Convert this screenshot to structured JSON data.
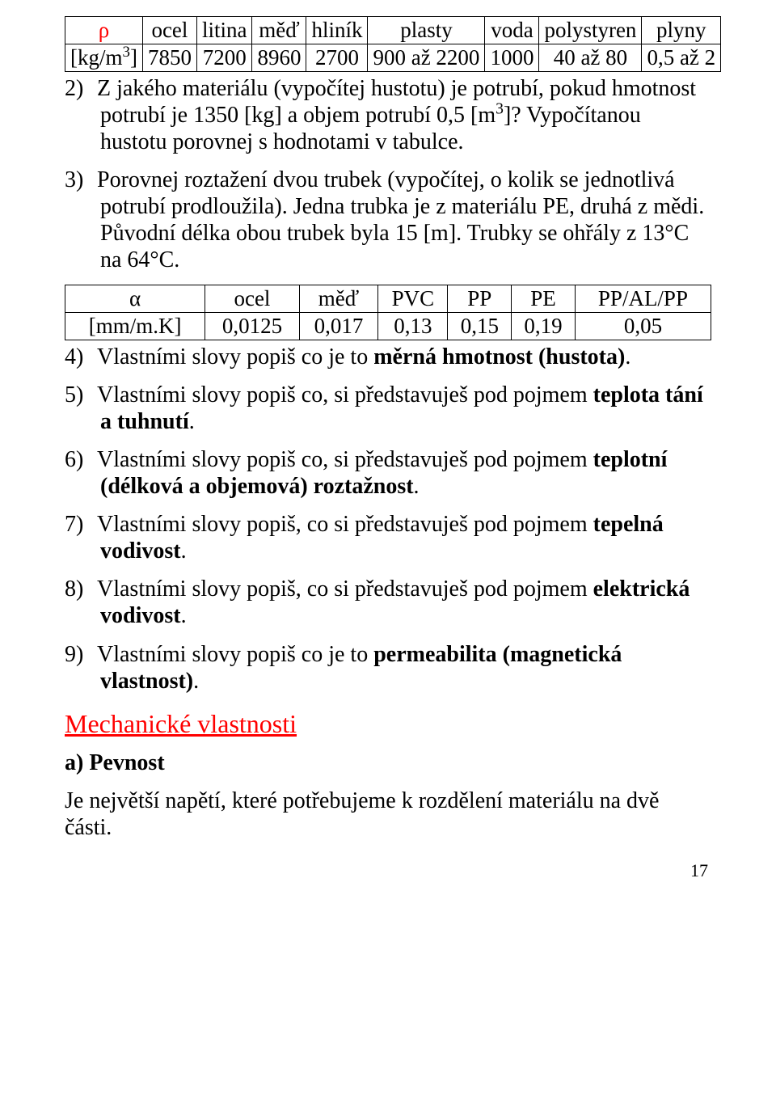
{
  "table1": {
    "header": [
      "ρ",
      "ocel",
      "litina",
      "měď",
      "hliník",
      "plasty",
      "voda",
      "polystyren",
      "plyny"
    ],
    "unit": "[kg/m³]",
    "row": [
      "7850",
      "7200",
      "8960",
      "2700",
      "900 až 2200",
      "1000",
      "40 až 80",
      "0,5 až 2"
    ],
    "rho_color": "#ff0000"
  },
  "q2": {
    "num": "2)",
    "text_a": "Z jakého materiálu (vypočítej hustotu) je potrubí, pokud hmotnost potrubí je 1350 [kg] a objem potrubí 0,5 [m",
    "sup": "3",
    "text_b": "]? Vypočítanou hustotu porovnej s hodnotami v tabulce."
  },
  "q3": {
    "num": "3)",
    "text": "Porovnej roztažení dvou trubek (vypočítej, o kolik se jednotlivá potrubí prodloužila). Jedna trubka je z materiálu PE, druhá z mědi. Původní délka obou trubek byla 15 [m]. Trubky se ohřály z 13°C na 64°C."
  },
  "table2": {
    "header": [
      "α",
      "ocel",
      "měď",
      "PVC",
      "PP",
      "PE",
      "PP/AL/PP"
    ],
    "unit": "[mm/m.K]",
    "row": [
      "0,0125",
      "0,017",
      "0,13",
      "0,15",
      "0,19",
      "0,05"
    ]
  },
  "q4": {
    "num": "4)",
    "text_a": "Vlastními slovy popiš co je to ",
    "bold": "měrná hmotnost (hustota)",
    "text_b": "."
  },
  "q5": {
    "num": "5)",
    "text_a": "Vlastními slovy popiš co, si představuješ pod pojmem ",
    "bold": "teplota tání a tuhnutí",
    "text_b": "."
  },
  "q6": {
    "num": "6)",
    "text_a": "Vlastními slovy popiš co, si představuješ pod pojmem ",
    "bold": "teplotní (délková a objemová) roztažnost",
    "text_b": "."
  },
  "q7": {
    "num": "7)",
    "text_a": "Vlastními slovy popiš, co si představuješ pod pojmem ",
    "bold": "tepelná vodivost",
    "text_b": "."
  },
  "q8": {
    "num": "8)",
    "text_a": "Vlastními slovy popiš, co si představuješ pod pojmem ",
    "bold": "elektrická vodivost",
    "text_b": "."
  },
  "q9": {
    "num": "9)",
    "text_a": "Vlastními slovy popiš co je to ",
    "bold": "permeabilita (magnetická vlastnost)",
    "text_b": "."
  },
  "section_title": "Mechanické vlastnosti",
  "subheading": "a) Pevnost",
  "paragraph": "Je největší napětí, které potřebujeme k rozdělení materiálu na dvě části.",
  "page_number": "17"
}
